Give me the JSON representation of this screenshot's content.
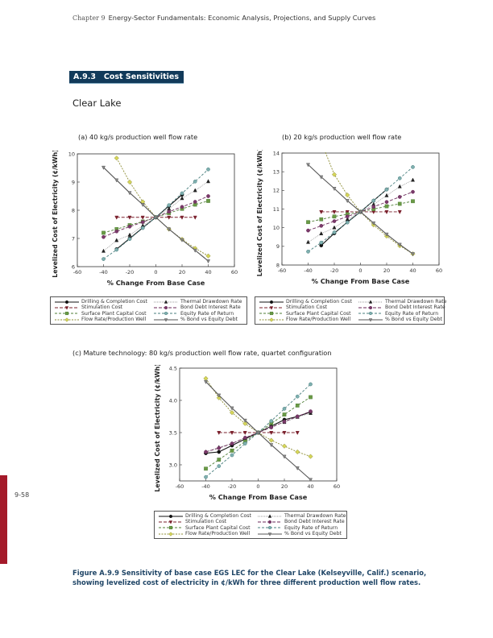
{
  "header": {
    "chapter": "Chapter 9",
    "title": "Energy-Sector Fundamentals: Economic Analysis, Projections, and Supply Curves"
  },
  "section": {
    "number": "A.9.3",
    "title": "Cost Sensitivities"
  },
  "subsection": "Clear Lake",
  "page_number": "9-58",
  "caption": "Figure A.9.9 Sensitivity of base case EGS LEC for the Clear Lake (Kelseyville, Calif.) scenario, showing levelized cost of electricity in ¢/kWh for three different production well flow rates.",
  "colors": {
    "section_bg": "#123a5a",
    "caption": "#1f4566",
    "side_bar": "#a41a2a"
  },
  "legend": [
    "Drilling & Completion Cost",
    "Thermal Drawdown Rate",
    "Stimulation Cost",
    "Bond Debt Interest Rate",
    "Surface Plant Capital Cost",
    "Equity Rate of Return",
    "Flow Rate/Production Well",
    "% Bond vs Equity Debt"
  ],
  "chart_data": [
    {
      "type": "line",
      "title": "(a) 40 kg/s production well flow rate",
      "xlabel": "% Change From Base Case",
      "ylabel": "Levelized Cost of Electricity (¢/kWh)",
      "xlim": [
        -60,
        60
      ],
      "ylim": [
        6,
        10
      ],
      "xticks": [
        -60,
        -40,
        -20,
        0,
        20,
        40,
        60
      ],
      "yticks": [
        6,
        7,
        8,
        9,
        10
      ],
      "x": [
        -40,
        -30,
        -20,
        -10,
        0,
        10,
        20,
        30,
        40
      ],
      "series": [
        {
          "name": "Drilling & Completion Cost",
          "values": [
            null,
            6.62,
            7.0,
            7.38,
            7.75,
            8.15,
            8.55,
            null,
            null
          ]
        },
        {
          "name": "Stimulation Cost",
          "values": [
            null,
            7.75,
            7.75,
            7.75,
            7.75,
            7.75,
            7.75,
            7.75,
            null
          ]
        },
        {
          "name": "Surface Plant Capital Cost",
          "values": [
            7.2,
            7.33,
            7.47,
            7.6,
            7.75,
            7.9,
            8.05,
            8.2,
            8.33
          ]
        },
        {
          "name": "Flow Rate/Production Well",
          "values": [
            null,
            9.85,
            9.0,
            8.3,
            7.75,
            7.33,
            6.97,
            6.65,
            6.38
          ]
        },
        {
          "name": "Thermal Drawdown Rate",
          "values": [
            6.55,
            6.93,
            7.12,
            7.45,
            7.75,
            8.05,
            8.42,
            8.7,
            9.02
          ]
        },
        {
          "name": "Bond Debt Interest Rate",
          "values": [
            7.05,
            7.25,
            7.42,
            7.58,
            7.75,
            7.95,
            8.12,
            8.3,
            8.5
          ]
        },
        {
          "name": "Equity Rate of Return",
          "values": [
            6.27,
            6.6,
            6.98,
            7.37,
            7.75,
            8.18,
            8.6,
            9.02,
            9.45
          ]
        },
        {
          "name": "% Bond vs Equity Debt",
          "values": [
            9.52,
            9.07,
            8.62,
            8.2,
            7.75,
            7.33,
            6.95,
            6.58,
            6.2
          ]
        }
      ]
    },
    {
      "type": "line",
      "title": "(b) 20 kg/s production well flow rate",
      "xlabel": "% Change From Base Case",
      "ylabel": "Levelized Cost of Electricity (¢/kWh)",
      "xlim": [
        -60,
        60
      ],
      "ylim": [
        8,
        14
      ],
      "xticks": [
        -60,
        -40,
        -20,
        0,
        20,
        40,
        60
      ],
      "yticks": [
        8,
        9,
        10,
        11,
        12,
        13,
        14
      ],
      "x": [
        -40,
        -30,
        -20,
        -10,
        0,
        10,
        20,
        30,
        40
      ],
      "series": [
        {
          "name": "Drilling & Completion Cost",
          "values": [
            null,
            9.05,
            9.7,
            10.3,
            10.85,
            11.45,
            12.05,
            null,
            null
          ]
        },
        {
          "name": "Stimulation Cost",
          "values": [
            null,
            10.85,
            10.85,
            10.85,
            10.85,
            10.85,
            10.85,
            10.85,
            null
          ]
        },
        {
          "name": "Surface Plant Capital Cost",
          "values": [
            10.3,
            10.45,
            10.6,
            10.72,
            10.85,
            11.0,
            11.15,
            11.28,
            11.42
          ]
        },
        {
          "name": "Flow Rate/Production Well",
          "values": [
            null,
            14.6,
            12.85,
            11.75,
            10.85,
            10.15,
            9.55,
            9.03,
            8.6
          ]
        },
        {
          "name": "Thermal Drawdown Rate",
          "values": [
            9.22,
            9.68,
            10.0,
            10.45,
            10.85,
            11.25,
            11.72,
            12.2,
            12.55
          ]
        },
        {
          "name": "Bond Debt Interest Rate",
          "values": [
            9.85,
            10.1,
            10.35,
            10.6,
            10.85,
            11.12,
            11.38,
            11.65,
            11.92
          ]
        },
        {
          "name": "Equity Rate of Return",
          "values": [
            8.72,
            9.2,
            9.75,
            10.28,
            10.85,
            11.45,
            12.05,
            12.65,
            13.25
          ]
        },
        {
          "name": "% Bond vs Equity Debt",
          "values": [
            13.38,
            12.72,
            12.1,
            11.45,
            10.85,
            10.25,
            9.65,
            9.1,
            8.6
          ]
        }
      ]
    },
    {
      "type": "line",
      "title": "(c) Mature technology: 80 kg/s production well flow rate, quartet configuration",
      "xlabel": "% Change From Base Case",
      "ylabel": "Levelized Cost of Electricity (¢/kWh)",
      "xlim": [
        -60,
        60
      ],
      "ylim": [
        2.75,
        4.5
      ],
      "xticks": [
        -60,
        -40,
        -20,
        0,
        20,
        40,
        60
      ],
      "yticks": [
        3.0,
        3.5,
        4.0,
        4.5
      ],
      "x": [
        -40,
        -30,
        -20,
        -10,
        0,
        10,
        20,
        30,
        40
      ],
      "series": [
        {
          "name": "Drilling & Completion Cost",
          "values": [
            3.18,
            3.2,
            3.3,
            3.4,
            3.5,
            3.6,
            3.7,
            3.75,
            3.82
          ]
        },
        {
          "name": "Stimulation Cost",
          "values": [
            null,
            3.5,
            3.5,
            3.5,
            3.5,
            3.5,
            3.5,
            3.5,
            null
          ]
        },
        {
          "name": "Surface Plant Capital Cost",
          "values": [
            2.94,
            3.08,
            3.22,
            3.36,
            3.5,
            3.64,
            3.78,
            3.92,
            4.05
          ]
        },
        {
          "name": "Flow Rate/Production Well",
          "values": [
            4.34,
            4.04,
            3.81,
            3.64,
            3.5,
            3.38,
            3.29,
            3.2,
            3.13
          ]
        },
        {
          "name": "Thermal Drawdown Rate",
          "values": [
            3.2,
            3.27,
            3.33,
            3.42,
            3.5,
            3.6,
            3.66,
            3.74,
            3.8
          ]
        },
        {
          "name": "Bond Debt Interest Rate",
          "values": [
            3.2,
            3.26,
            3.33,
            3.42,
            3.5,
            3.58,
            3.67,
            3.75,
            3.83
          ]
        },
        {
          "name": "Equity Rate of Return",
          "values": [
            2.81,
            2.98,
            3.15,
            3.33,
            3.5,
            3.68,
            3.87,
            4.06,
            4.25
          ]
        },
        {
          "name": "% Bond vs Equity Debt",
          "values": [
            4.29,
            4.08,
            3.88,
            3.69,
            3.5,
            3.31,
            3.13,
            2.95,
            2.77
          ]
        }
      ]
    }
  ]
}
